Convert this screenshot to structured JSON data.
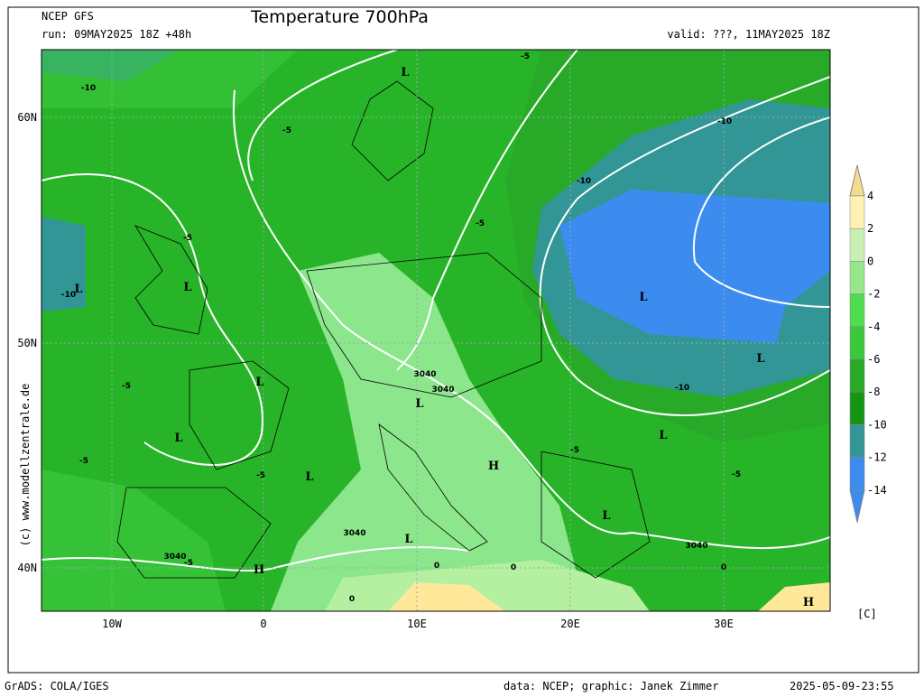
{
  "header": {
    "model": "NCEP GFS",
    "run": "run: 09MAY2025 18Z +48h",
    "title": "Temperature 700hPa",
    "valid": "valid: ???, 11MAY2025 18Z"
  },
  "map": {
    "lat_labels": [
      "60N",
      "50N",
      "40N"
    ],
    "lon_labels": [
      "10W",
      "0",
      "10E",
      "20E",
      "30E"
    ],
    "watermark": "(c) www.modellzentrale.de",
    "labels": [
      "L",
      "L",
      "L",
      "L",
      "L",
      "L",
      "L",
      "L",
      "L",
      "L",
      "L",
      "L",
      "H",
      "H",
      "H",
      "3040",
      "3040",
      "3040",
      "3040",
      "3040",
      "-5",
      "-5",
      "-5",
      "-5",
      "-5",
      "-5",
      "-5",
      "-5",
      "-5",
      "-5",
      "-10",
      "-10",
      "-10",
      "-10",
      "-10",
      "0",
      "0",
      "0",
      "0"
    ]
  },
  "colorbar": {
    "labels": [
      "4",
      "2",
      "0",
      "-2",
      "-4",
      "-6",
      "-8",
      "-10",
      "-12",
      "-14"
    ],
    "unit": "[C]"
  },
  "footer": {
    "left": "GrADS: COLA/IGES",
    "center": "data: NCEP; graphic: Janek Zimmer",
    "right": "2025-05-09-23:55"
  }
}
